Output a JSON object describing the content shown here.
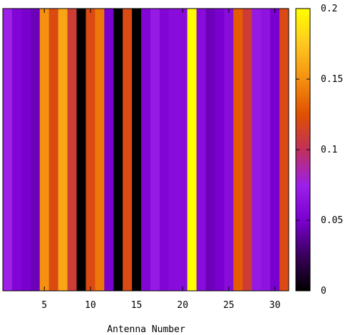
{
  "chart_data": {
    "type": "heatmap",
    "title": "",
    "xlabel": "Antenna Number",
    "ylabel": "",
    "x_ticks": [
      5,
      10,
      15,
      20,
      25,
      30
    ],
    "xlim": [
      0.5,
      31.5
    ],
    "colorbar": {
      "ticks": [
        0,
        0.05,
        0.1,
        0.15,
        0.2
      ],
      "tick_labels": [
        "0",
        "0.05",
        "0.1",
        "0.15",
        "0.2"
      ],
      "range": [
        0,
        0.2
      ],
      "palette": [
        "#000000",
        "#3a005c",
        "#7a00d0",
        "#9c20e8",
        "#c0305a",
        "#e05000",
        "#f59010",
        "#ffc820",
        "#ffff00"
      ]
    },
    "antennas": [
      1,
      2,
      3,
      4,
      5,
      6,
      7,
      8,
      9,
      10,
      11,
      12,
      13,
      14,
      15,
      16,
      17,
      18,
      19,
      20,
      21,
      22,
      23,
      24,
      25,
      26,
      27,
      28,
      29,
      30,
      31
    ],
    "column_means": [
      0.075,
      0.055,
      0.05,
      0.045,
      0.15,
      0.12,
      0.16,
      0.11,
      0.0,
      0.12,
      0.14,
      0.05,
      0.0,
      0.12,
      0.0,
      0.055,
      0.07,
      0.055,
      0.06,
      0.06,
      0.2,
      0.06,
      0.045,
      0.05,
      0.06,
      0.13,
      0.11,
      0.07,
      0.065,
      0.05,
      0.12
    ]
  }
}
